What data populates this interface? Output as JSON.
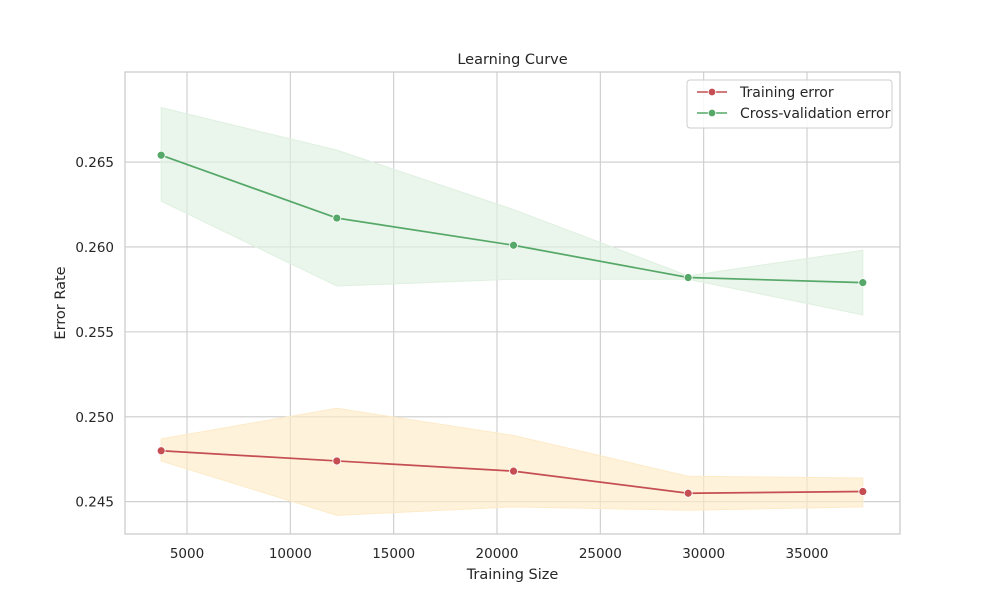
{
  "chart_data": {
    "type": "line",
    "title": "Learning Curve",
    "xlabel": "Training Size",
    "ylabel": "Error Rate",
    "xlim": [
      2000,
      39500
    ],
    "ylim": [
      0.2431,
      0.2703
    ],
    "xticks": [
      5000,
      10000,
      15000,
      20000,
      25000,
      30000,
      35000
    ],
    "yticks": [
      0.245,
      0.25,
      0.255,
      0.26,
      0.265
    ],
    "grid": true,
    "legend_position": "top-right",
    "x": [
      3750,
      12250,
      20800,
      29250,
      37700
    ],
    "series": [
      {
        "name": "Training error",
        "color": "#c44e52",
        "band_color": "#fdebc8",
        "values": [
          0.248,
          0.2474,
          0.2468,
          0.2455,
          0.2456
        ],
        "band_upper": [
          0.2487,
          0.2505,
          0.2489,
          0.2465,
          0.2464
        ],
        "band_lower": [
          0.2474,
          0.2442,
          0.2447,
          0.2445,
          0.2447
        ]
      },
      {
        "name": "Cross-validation error",
        "color": "#55a868",
        "band_color": "#dff0e0",
        "values": [
          0.2654,
          0.2617,
          0.2601,
          0.2582,
          0.2579
        ],
        "band_upper": [
          0.2682,
          0.2657,
          0.2622,
          0.2583,
          0.2598
        ],
        "band_lower": [
          0.2627,
          0.2577,
          0.2581,
          0.2581,
          0.256
        ]
      }
    ]
  }
}
